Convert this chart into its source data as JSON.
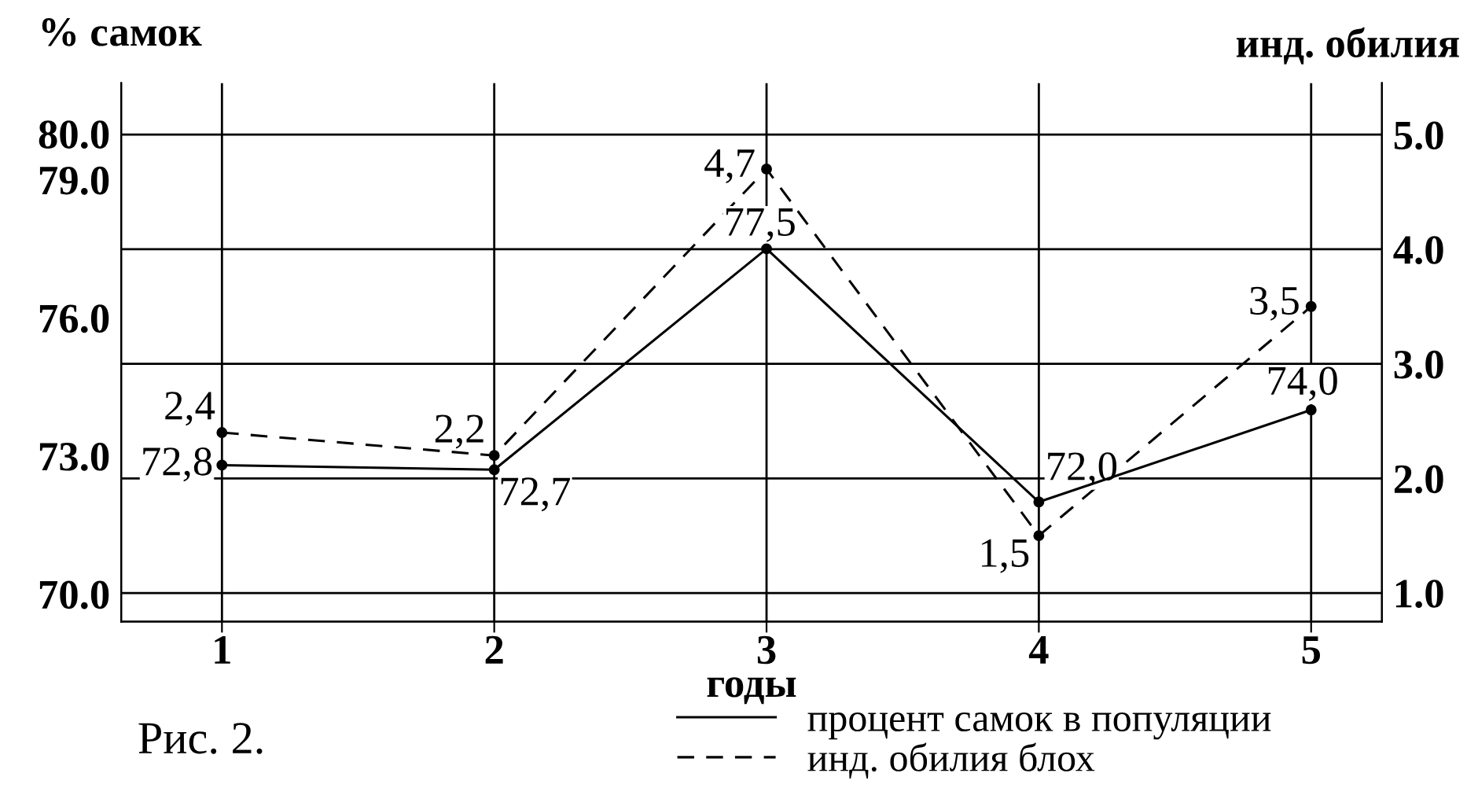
{
  "chart_data": {
    "type": "line",
    "xlabel": "годы",
    "ylabel": "% самок",
    "y2label": "инд. обилия",
    "annotations": [
      "Рис. 2."
    ],
    "categories": [
      "1",
      "2",
      "3",
      "4",
      "5"
    ],
    "series": [
      {
        "name": "процент самок в популяции",
        "color": "#000000",
        "line_style": "solid",
        "values": [
          72.8,
          72.7,
          77.5,
          72.0,
          74.0
        ],
        "value_labels": [
          "72,8",
          "72,7",
          "77,5",
          "72,0",
          "74,0"
        ]
      },
      {
        "name": "инд. обилия блох",
        "color": "#000000",
        "line_style": "dashed",
        "axis": "y2",
        "values": [
          2.4,
          2.2,
          4.7,
          1.5,
          3.5
        ],
        "value_labels": [
          "2,4",
          "2,2",
          "4,7",
          "1,5",
          "3,5"
        ]
      }
    ],
    "ylim": [
      69.4,
      81.1
    ],
    "yticks": [
      {
        "value": 70,
        "label": "70.0"
      },
      {
        "value": 73,
        "label": "73.0"
      },
      {
        "value": 76,
        "label": "76.0"
      },
      {
        "value": 79,
        "label": "79.0"
      },
      {
        "value": 80,
        "label": "80.0"
      }
    ],
    "y2lim": [
      0.75,
      5.45
    ],
    "y2ticks": [
      {
        "value": 1,
        "label": "1.0"
      },
      {
        "value": 2,
        "label": "2.0"
      },
      {
        "value": 3,
        "label": "3.0"
      },
      {
        "value": 4,
        "label": "4.0"
      },
      {
        "value": 5,
        "label": "5.0"
      }
    ],
    "grid": true,
    "legend": "bottom",
    "marker": "circle"
  }
}
